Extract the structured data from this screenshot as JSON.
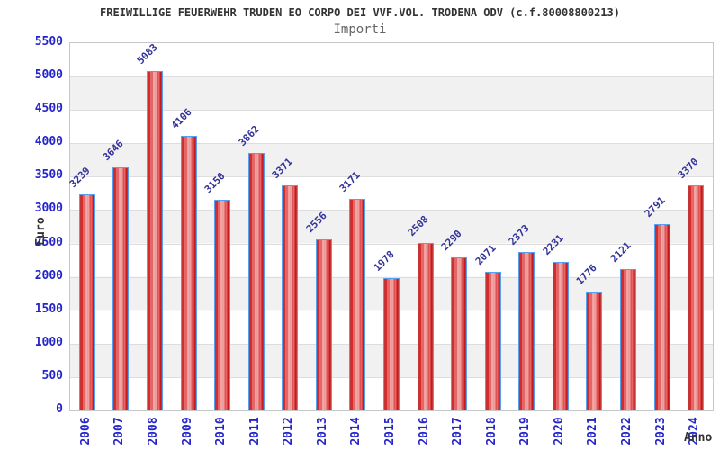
{
  "chart_data": {
    "type": "bar",
    "title": "FREIWILLIGE FEUERWEHR TRUDEN EO CORPO DEI VVF.VOL. TRODENA ODV (c.f.80008800213)",
    "subtitle": "Importi",
    "xlabel": "Anno",
    "ylabel": "Euro",
    "categories": [
      "2006",
      "2007",
      "2008",
      "2009",
      "2010",
      "2011",
      "2012",
      "2013",
      "2014",
      "2015",
      "2016",
      "2017",
      "2018",
      "2019",
      "2020",
      "2021",
      "2022",
      "2023",
      "2024"
    ],
    "values": [
      3239,
      3646,
      5083,
      4106,
      3150,
      3862,
      3371,
      2556,
      3171,
      1978,
      2508,
      2290,
      2071,
      2373,
      2231,
      1776,
      2121,
      2791,
      3370
    ],
    "ylim": [
      0,
      5500
    ],
    "ytick_step": 500,
    "grid": true,
    "legend": "none",
    "colors": {
      "bar_dark_edge": "#a80000",
      "bar_bright": "#dd2222",
      "bar_center": "#f7b1b1",
      "bar_border": "#55a0f0",
      "tick_label": "#2424cc",
      "value_label": "#333399",
      "title": "#333333",
      "subtitle": "#666666",
      "axis_label": "#333333",
      "band_gray": "#f1f1f1",
      "gridline": "#dddddd",
      "plot_border": "#c8c8c8",
      "background": "#ffffff"
    }
  }
}
